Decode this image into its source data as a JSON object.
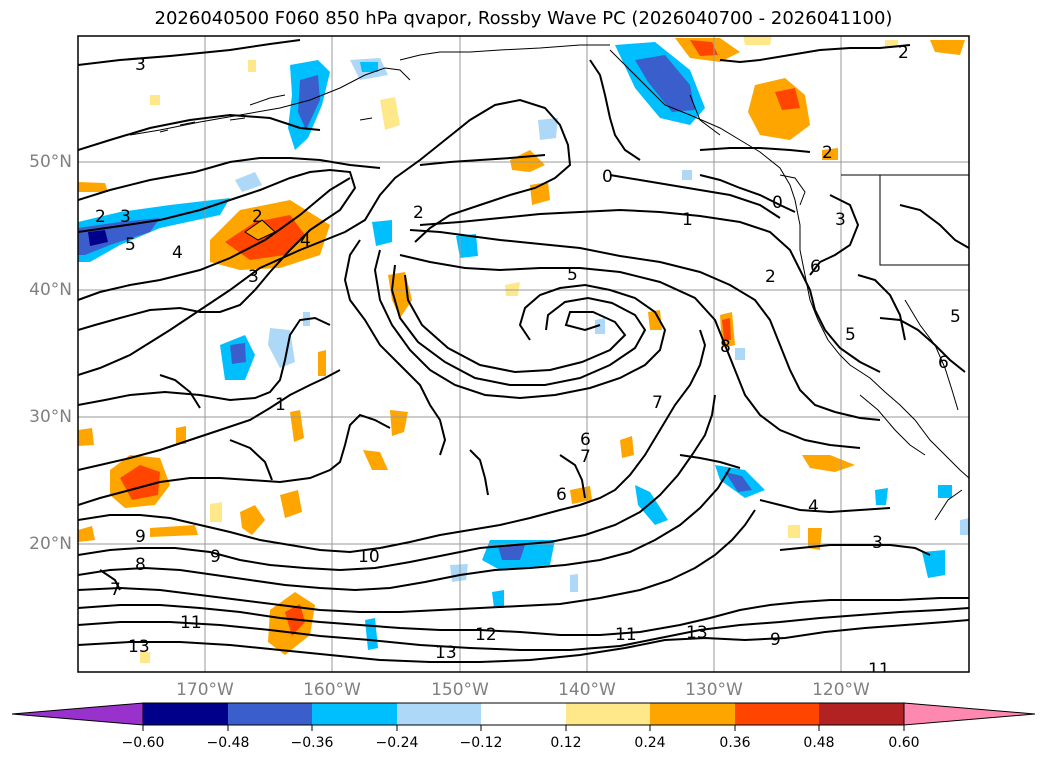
{
  "title": "2026040500 F060 850 hPa qvapor, Rossby Wave PC (2026040700 - 2026041100)",
  "map": {
    "lat_labels": [
      "50°N",
      "40°N",
      "30°N",
      "20°N"
    ],
    "lon_labels": [
      "170°W",
      "160°W",
      "150°W",
      "140°W",
      "130°W",
      "120°W"
    ],
    "contour_labels": [
      "3",
      "2",
      "3",
      "5",
      "4",
      "3",
      "2",
      "4",
      "2",
      "0",
      "1",
      "5",
      "2",
      "1",
      "7",
      "6",
      "7",
      "6",
      "8",
      "9",
      "10",
      "9",
      "8",
      "7",
      "11",
      "12",
      "13",
      "13",
      "11",
      "9",
      "13",
      "11",
      "4",
      "3",
      "2",
      "2",
      "3",
      "6",
      "5",
      "6",
      "5",
      "0"
    ]
  },
  "colorbar": {
    "ticks": [
      "−0.60",
      "−0.48",
      "−0.36",
      "−0.24",
      "−0.12",
      "0.12",
      "0.24",
      "0.36",
      "0.48",
      "0.60"
    ],
    "colors": [
      "#9932cc",
      "#00008b",
      "#3a5fcd",
      "#00bfff",
      "#add8f7",
      "#ffffff",
      "#ffe88a",
      "#ffa500",
      "#ff4500",
      "#b22222",
      "#ff88b0"
    ]
  }
}
